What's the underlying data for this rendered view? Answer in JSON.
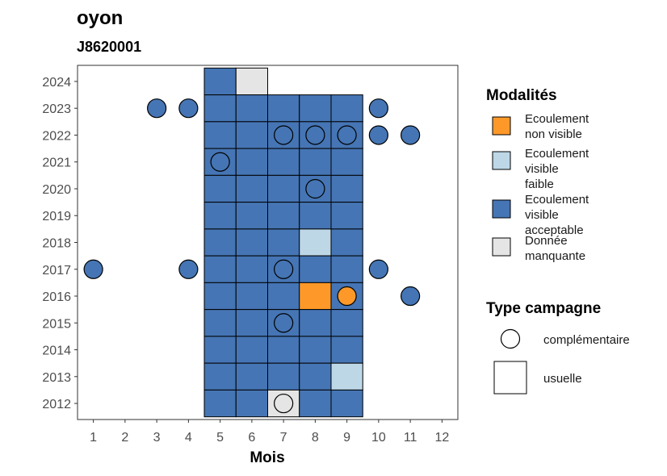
{
  "chart_data": {
    "type": "heatmap",
    "title": "oyon",
    "subtitle": "J8620001",
    "xlabel": "Mois",
    "ylabel": "",
    "x_ticks": [
      1,
      2,
      3,
      4,
      5,
      6,
      7,
      8,
      9,
      10,
      11,
      12
    ],
    "y_ticks": [
      2012,
      2013,
      2014,
      2015,
      2016,
      2017,
      2018,
      2019,
      2020,
      2021,
      2022,
      2023,
      2024
    ],
    "xlim": [
      0.5,
      12.5
    ],
    "ylim": [
      2011.4,
      2024.6
    ],
    "colors": {
      "ecoulement_non_visible": "#FE9929",
      "ecoulement_visible_faible": "#BDD7E7",
      "ecoulement_visible_acceptable": "#4575B4",
      "donnee_manquante": "#E5E5E5",
      "outline": "#000000",
      "axis_text": "#4D4D4D"
    },
    "legend_modalites": {
      "title": "Modalités",
      "entries": [
        {
          "key": "ecoulement_non_visible",
          "lines": [
            "Ecoulement",
            "non visible"
          ]
        },
        {
          "key": "ecoulement_visible_faible",
          "lines": [
            "Ecoulement",
            "visible",
            "faible"
          ]
        },
        {
          "key": "ecoulement_visible_acceptable",
          "lines": [
            "Ecoulement",
            "visible",
            "acceptable"
          ]
        },
        {
          "key": "donnee_manquante",
          "lines": [
            "Donnée",
            "manquante"
          ]
        }
      ]
    },
    "legend_campagne": {
      "title": "Type campagne",
      "entries": [
        {
          "shape": "circle",
          "label": "complémentaire"
        },
        {
          "shape": "square",
          "label": "usuelle"
        }
      ]
    },
    "usuelle": [
      {
        "year": 2024,
        "months": [
          "A",
          "M",
          null,
          null,
          null
        ]
      },
      {
        "year": 2023,
        "months": [
          "A",
          "A",
          "A",
          "A",
          "A"
        ]
      },
      {
        "year": 2022,
        "months": [
          "A",
          "A",
          "A",
          "A",
          "A"
        ]
      },
      {
        "year": 2021,
        "months": [
          "A",
          "A",
          "A",
          "A",
          "A"
        ]
      },
      {
        "year": 2020,
        "months": [
          "A",
          "A",
          "A",
          "A",
          "A"
        ]
      },
      {
        "year": 2019,
        "months": [
          "A",
          "A",
          "A",
          "A",
          "A"
        ]
      },
      {
        "year": 2018,
        "months": [
          "A",
          "A",
          "A",
          "F",
          "A"
        ]
      },
      {
        "year": 2017,
        "months": [
          "A",
          "A",
          "A",
          "A",
          "A"
        ]
      },
      {
        "year": 2016,
        "months": [
          "A",
          "A",
          "A",
          "N",
          "A"
        ]
      },
      {
        "year": 2015,
        "months": [
          "A",
          "A",
          "A",
          "A",
          "A"
        ]
      },
      {
        "year": 2014,
        "months": [
          "A",
          "A",
          "A",
          "A",
          "A"
        ]
      },
      {
        "year": 2013,
        "months": [
          "A",
          "A",
          "A",
          "A",
          "F"
        ]
      },
      {
        "year": 2012,
        "months": [
          "A",
          "A",
          "M",
          "A",
          "A"
        ]
      }
    ],
    "usuelle_first_month": 5,
    "complementaire": [
      {
        "year": 2023,
        "month": 3,
        "value": "A"
      },
      {
        "year": 2023,
        "month": 4,
        "value": "A"
      },
      {
        "year": 2023,
        "month": 10,
        "value": "A"
      },
      {
        "year": 2022,
        "month": 7,
        "value": "A"
      },
      {
        "year": 2022,
        "month": 8,
        "value": "A"
      },
      {
        "year": 2022,
        "month": 9,
        "value": "A"
      },
      {
        "year": 2022,
        "month": 10,
        "value": "A"
      },
      {
        "year": 2022,
        "month": 11,
        "value": "A"
      },
      {
        "year": 2021,
        "month": 5,
        "value": "A"
      },
      {
        "year": 2020,
        "month": 8,
        "value": "A"
      },
      {
        "year": 2017,
        "month": 1,
        "value": "A"
      },
      {
        "year": 2017,
        "month": 4,
        "value": "A"
      },
      {
        "year": 2017,
        "month": 7,
        "value": "A"
      },
      {
        "year": 2017,
        "month": 10,
        "value": "A"
      },
      {
        "year": 2016,
        "month": 9,
        "value": "N"
      },
      {
        "year": 2016,
        "month": 11,
        "value": "A"
      },
      {
        "year": 2015,
        "month": 7,
        "value": "A"
      },
      {
        "year": 2012,
        "month": 7,
        "value": "M"
      }
    ]
  }
}
